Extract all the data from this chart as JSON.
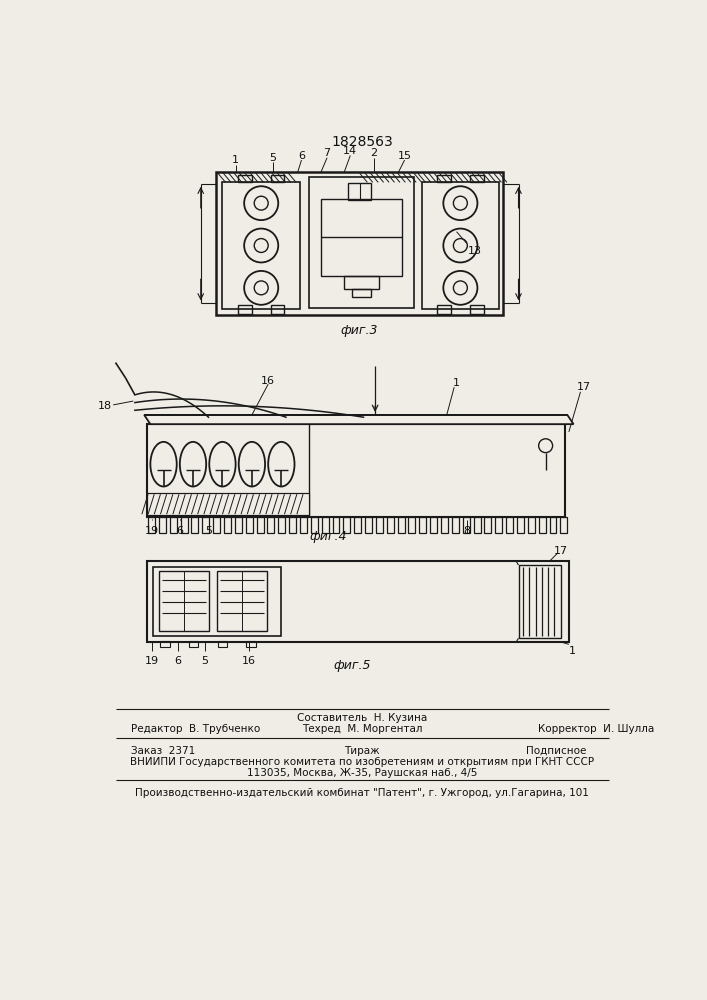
{
  "patent_number": "1828563",
  "background_color": "#f0ede6",
  "line_color": "#1a1a1a",
  "text_color": "#111111",
  "fig_labels": [
    "фиг.3",
    "фиг.4",
    "фиг.5"
  ],
  "footer_line0_mid": "Составитель  Н. Кузина",
  "footer_line1_left": "Редактор  В. Трубченко",
  "footer_line1_mid": "Техред  М. Моргентал",
  "footer_line1_right": "Корректор  И. Шулла",
  "footer_line2_left": "Заказ  2371",
  "footer_line2_mid": "Тираж",
  "footer_line2_right": "Подписное",
  "footer_line3": "ВНИИПИ Государственного комитета по изобретениям и открытиям при ГКНТ СССР",
  "footer_line4": "113035, Москва, Ж-35, Раушская наб., 4/5",
  "footer_line5": "Производственно-издательский комбинат \"Патент\", г. Ужгород, ул.Гагарина, 101"
}
